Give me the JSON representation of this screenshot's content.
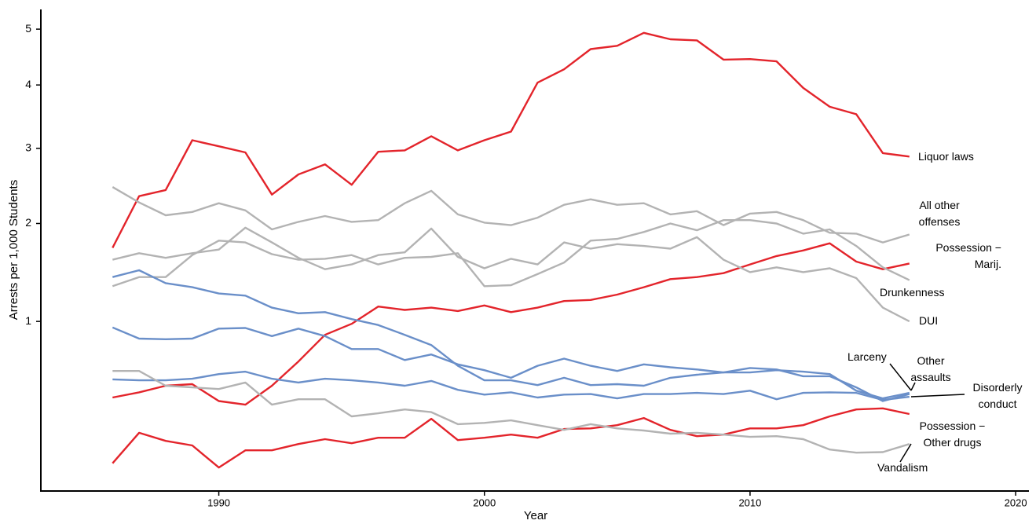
{
  "chart_data": {
    "type": "line",
    "x_label": "Year",
    "y_label": "Arrests per 1,000 Students",
    "yscale": "sqrt",
    "x": [
      1986,
      1987,
      1988,
      1989,
      1990,
      1991,
      1992,
      1993,
      1994,
      1995,
      1996,
      1997,
      1998,
      1999,
      2000,
      2001,
      2002,
      2003,
      2004,
      2005,
      2006,
      2007,
      2008,
      2009,
      2010,
      2011,
      2012,
      2013,
      2014,
      2015,
      2016
    ],
    "xlim": [
      1983.3,
      2020.5
    ],
    "xticks": [
      1990,
      2000,
      2010,
      2020
    ],
    "ylim": [
      0.08,
      5.38
    ],
    "yticks": [
      1,
      2,
      3,
      4,
      5
    ],
    "series": [
      {
        "name": "Liquor laws",
        "color": "#e3242b",
        "values": [
          1.72,
          2.34,
          2.42,
          3.12,
          3.03,
          2.94,
          2.36,
          2.63,
          2.77,
          2.49,
          2.95,
          2.97,
          3.18,
          2.97,
          3.12,
          3.25,
          4.04,
          4.27,
          4.63,
          4.69,
          4.93,
          4.81,
          4.79,
          4.44,
          4.45,
          4.41,
          3.95,
          3.64,
          3.52,
          2.93,
          2.88
        ]
      },
      {
        "name": "All other offenses",
        "color": "#b3b3b3",
        "values": [
          2.46,
          2.26,
          2.1,
          2.14,
          2.25,
          2.16,
          1.93,
          2.02,
          2.09,
          2.02,
          2.04,
          2.25,
          2.41,
          2.11,
          2.01,
          1.98,
          2.07,
          2.23,
          2.3,
          2.23,
          2.25,
          2.11,
          2.15,
          1.98,
          2.12,
          2.14,
          2.04,
          1.89,
          1.88,
          1.78,
          1.87
        ]
      },
      {
        "name": "Possession − Marij.",
        "color": "#e3242b",
        "values": [
          0.46,
          0.49,
          0.53,
          0.54,
          0.44,
          0.42,
          0.53,
          0.69,
          0.89,
          0.98,
          1.13,
          1.1,
          1.12,
          1.09,
          1.14,
          1.08,
          1.12,
          1.18,
          1.19,
          1.24,
          1.31,
          1.39,
          1.41,
          1.45,
          1.54,
          1.63,
          1.69,
          1.77,
          1.57,
          1.49,
          1.55
        ]
      },
      {
        "name": "Drunkenness",
        "color": "#b3b3b3",
        "values": [
          1.32,
          1.41,
          1.41,
          1.64,
          1.8,
          1.78,
          1.65,
          1.59,
          1.6,
          1.64,
          1.54,
          1.61,
          1.62,
          1.66,
          1.32,
          1.33,
          1.44,
          1.56,
          1.8,
          1.82,
          1.9,
          2.0,
          1.92,
          2.04,
          2.04,
          2.0,
          1.88,
          1.93,
          1.74,
          1.51,
          1.38
        ]
      },
      {
        "name": "DUI",
        "color": "#b3b3b3",
        "values": [
          1.59,
          1.66,
          1.61,
          1.66,
          1.7,
          1.95,
          1.78,
          1.61,
          1.49,
          1.54,
          1.64,
          1.67,
          1.94,
          1.62,
          1.5,
          1.6,
          1.54,
          1.78,
          1.71,
          1.76,
          1.74,
          1.71,
          1.84,
          1.59,
          1.46,
          1.51,
          1.46,
          1.5,
          1.4,
          1.12,
          1.0
        ]
      },
      {
        "name": "Larceny",
        "color": "#6a8fc9",
        "values": [
          1.41,
          1.48,
          1.35,
          1.31,
          1.25,
          1.23,
          1.12,
          1.07,
          1.08,
          1.02,
          0.97,
          0.89,
          0.81,
          0.66,
          0.564,
          0.564,
          0.534,
          0.58,
          0.534,
          0.54,
          0.53,
          0.58,
          0.6,
          0.615,
          0.615,
          0.63,
          0.62,
          0.604,
          0.5,
          0.455,
          0.487
        ]
      },
      {
        "name": "Other assaults",
        "color": "#6a8fc9",
        "values": [
          0.95,
          0.86,
          0.855,
          0.86,
          0.94,
          0.945,
          0.88,
          0.94,
          0.88,
          0.78,
          0.78,
          0.7,
          0.74,
          0.67,
          0.63,
          0.58,
          0.66,
          0.71,
          0.66,
          0.625,
          0.67,
          0.65,
          0.635,
          0.615,
          0.645,
          0.635,
          0.59,
          0.59,
          0.52,
          0.44,
          0.48
        ]
      },
      {
        "name": "Disorderly conduct",
        "color": "#6a8fc9",
        "values": [
          0.57,
          0.564,
          0.564,
          0.574,
          0.604,
          0.62,
          0.574,
          0.55,
          0.574,
          0.564,
          0.55,
          0.53,
          0.56,
          0.505,
          0.477,
          0.49,
          0.46,
          0.477,
          0.48,
          0.455,
          0.48,
          0.48,
          0.487,
          0.48,
          0.5,
          0.45,
          0.487,
          0.49,
          0.487,
          0.446,
          0.464
        ]
      },
      {
        "name": "Possession − Other drugs",
        "color": "#e3242b",
        "values": [
          0.16,
          0.28,
          0.245,
          0.226,
          0.146,
          0.207,
          0.207,
          0.232,
          0.252,
          0.235,
          0.258,
          0.258,
          0.346,
          0.248,
          0.258,
          0.272,
          0.258,
          0.297,
          0.3,
          0.315,
          0.35,
          0.293,
          0.265,
          0.272,
          0.3,
          0.3,
          0.315,
          0.358,
          0.394,
          0.4,
          0.37
        ]
      },
      {
        "name": "Vandalism",
        "color": "#b3b3b3",
        "values": [
          0.625,
          0.625,
          0.53,
          0.52,
          0.51,
          0.55,
          0.42,
          0.45,
          0.45,
          0.358,
          0.374,
          0.394,
          0.38,
          0.32,
          0.326,
          0.338,
          0.315,
          0.293,
          0.32,
          0.3,
          0.29,
          0.276,
          0.28,
          0.272,
          0.262,
          0.265,
          0.252,
          0.21,
          0.198,
          0.2,
          0.232
        ]
      }
    ]
  }
}
